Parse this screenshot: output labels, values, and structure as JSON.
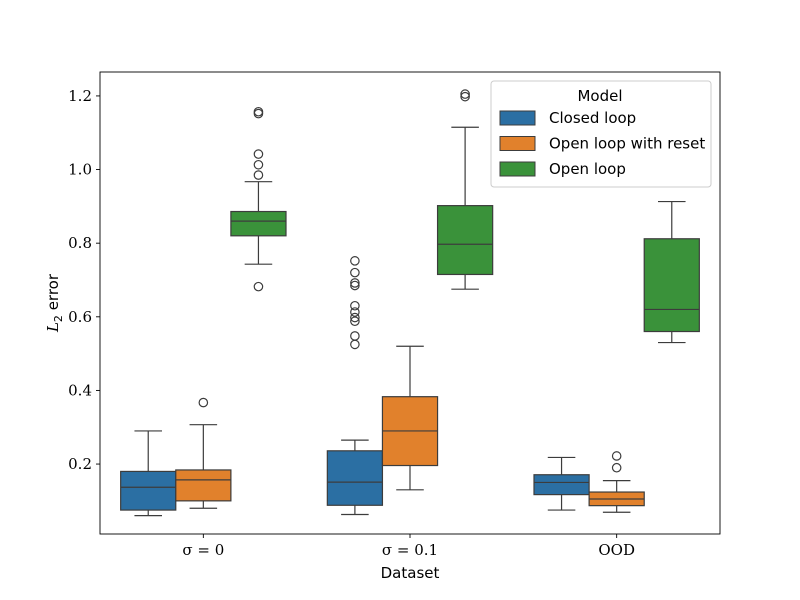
{
  "chart_data": {
    "type": "box",
    "xlabel": "Dataset",
    "ylabel_prefix": "L",
    "ylabel_sub": "2",
    "ylabel_suffix": " error",
    "categories": [
      "σ = 0",
      "σ = 0.1",
      "OOD"
    ],
    "ylim": [
      0.01,
      1.265
    ],
    "yticks": [
      0.2,
      0.4,
      0.6,
      0.8,
      1.0,
      1.2
    ],
    "ytick_labels": [
      "0.2",
      "0.4",
      "0.6",
      "0.8",
      "1.0",
      "1.2"
    ],
    "legend": {
      "title": "Model",
      "position": "top-right"
    },
    "grid": false,
    "series": [
      {
        "name": "Closed loop",
        "color": "#2b6fa3",
        "boxes": [
          {
            "whisker_low": 0.06,
            "q1": 0.075,
            "median": 0.137,
            "q3": 0.18,
            "whisker_high": 0.29,
            "outliers": []
          },
          {
            "whisker_low": 0.063,
            "q1": 0.088,
            "median": 0.151,
            "q3": 0.236,
            "whisker_high": 0.265,
            "outliers": [
              0.525,
              0.548,
              0.588,
              0.598,
              0.613,
              0.63,
              0.685,
              0.692,
              0.72,
              0.752
            ]
          },
          {
            "whisker_low": 0.075,
            "q1": 0.117,
            "median": 0.15,
            "q3": 0.171,
            "whisker_high": 0.218,
            "outliers": []
          }
        ]
      },
      {
        "name": "Open loop with reset",
        "color": "#e1812c",
        "boxes": [
          {
            "whisker_low": 0.08,
            "q1": 0.1,
            "median": 0.157,
            "q3": 0.184,
            "whisker_high": 0.307,
            "outliers": [
              0.367
            ]
          },
          {
            "whisker_low": 0.13,
            "q1": 0.196,
            "median": 0.29,
            "q3": 0.383,
            "whisker_high": 0.52,
            "outliers": []
          },
          {
            "whisker_low": 0.069,
            "q1": 0.087,
            "median": 0.105,
            "q3": 0.124,
            "whisker_high": 0.155,
            "outliers": [
              0.19,
              0.222
            ]
          }
        ]
      },
      {
        "name": "Open loop",
        "color": "#3a923a",
        "boxes": [
          {
            "whisker_low": 0.743,
            "q1": 0.82,
            "median": 0.86,
            "q3": 0.886,
            "whisker_high": 0.967,
            "outliers": [
              0.682,
              0.985,
              1.013,
              1.042,
              1.152,
              1.157
            ]
          },
          {
            "whisker_low": 0.675,
            "q1": 0.715,
            "median": 0.797,
            "q3": 0.902,
            "whisker_high": 1.115,
            "outliers": [
              1.198,
              1.205
            ]
          },
          {
            "whisker_low": 0.53,
            "q1": 0.56,
            "median": 0.62,
            "q3": 0.812,
            "whisker_high": 0.913,
            "outliers": []
          }
        ]
      }
    ]
  }
}
